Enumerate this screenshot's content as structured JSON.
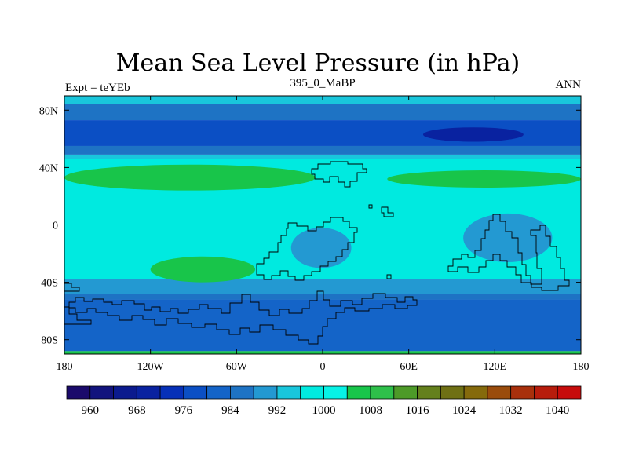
{
  "chart_data": {
    "type": "contour-map",
    "title": "Mean Sea Level Pressure (in hPa)",
    "left_label": "Expt = teYEb",
    "center_label": "395_0_MaBP",
    "right_label": "ANN",
    "xlim": [
      -180,
      180
    ],
    "ylim": [
      -90,
      90
    ],
    "x_ticks": [
      {
        "value": -180,
        "label": "180"
      },
      {
        "value": -120,
        "label": "120W"
      },
      {
        "value": -60,
        "label": "60W"
      },
      {
        "value": 0,
        "label": "0"
      },
      {
        "value": 60,
        "label": "60E"
      },
      {
        "value": 120,
        "label": "120E"
      },
      {
        "value": 180,
        "label": "180"
      }
    ],
    "y_ticks": [
      {
        "value": 80,
        "label": "80N"
      },
      {
        "value": 40,
        "label": "40N"
      },
      {
        "value": 0,
        "label": "0"
      },
      {
        "value": -40,
        "label": "40S"
      },
      {
        "value": -80,
        "label": "80S"
      }
    ],
    "colorbar": {
      "levels": [
        956,
        960,
        964,
        968,
        972,
        976,
        980,
        984,
        988,
        992,
        996,
        1000,
        1004,
        1008,
        1012,
        1016,
        1020,
        1024,
        1028,
        1032,
        1036,
        1040,
        1044
      ],
      "colors": [
        "#1a0a6b",
        "#12137d",
        "#0b1a8e",
        "#0922a0",
        "#0630b8",
        "#0b4fc4",
        "#1464c8",
        "#1e73c4",
        "#2399d2",
        "#19c6dc",
        "#00eae0",
        "#07f2e6",
        "#18c54a",
        "#2ec04a",
        "#4d9a28",
        "#64801c",
        "#6f7014",
        "#856a0c",
        "#9a4c0c",
        "#a8300c",
        "#b71c0c",
        "#c70c0c"
      ],
      "labels": [
        {
          "value": 960,
          "label": "960"
        },
        {
          "value": 968,
          "label": "968"
        },
        {
          "value": 976,
          "label": "976"
        },
        {
          "value": 984,
          "label": "984"
        },
        {
          "value": 992,
          "label": "992"
        },
        {
          "value": 1000,
          "label": "1000"
        },
        {
          "value": 1008,
          "label": "1008"
        },
        {
          "value": 1016,
          "label": "1016"
        },
        {
          "value": 1024,
          "label": "1024"
        },
        {
          "value": 1032,
          "label": "1032"
        },
        {
          "value": 1040,
          "label": "1040"
        }
      ]
    },
    "bands": [
      {
        "lat_from": 90,
        "lat_to": 84,
        "value": 994
      },
      {
        "lat_from": 84,
        "lat_to": 73,
        "value": 986
      },
      {
        "lat_from": 73,
        "lat_to": 55,
        "value": 978
      },
      {
        "lat_from": 55,
        "lat_to": 49,
        "value": 986
      },
      {
        "lat_from": 49,
        "lat_to": 46,
        "value": 994
      },
      {
        "lat_from": 46,
        "lat_to": -38,
        "value": 998
      },
      {
        "lat_from": -38,
        "lat_to": -48,
        "value": 990
      },
      {
        "lat_from": -48,
        "lat_to": -52,
        "value": 986
      },
      {
        "lat_from": -52,
        "lat_to": -88,
        "value": 982
      },
      {
        "lat_from": -88,
        "lat_to": -90,
        "value": 1006
      }
    ],
    "features": [
      {
        "name": "low-north-pacific",
        "lon": [
          70,
          140
        ],
        "lat": [
          58,
          68
        ],
        "value": 970
      },
      {
        "name": "high-north-atlantic",
        "lon": [
          -180,
          -5
        ],
        "lat": [
          24,
          42
        ],
        "value": 1006
      },
      {
        "name": "high-north-pacific",
        "lon": [
          45,
          180
        ],
        "lat": [
          26,
          38
        ],
        "value": 1006
      },
      {
        "name": "high-south",
        "lon": [
          -120,
          -47
        ],
        "lat": [
          -40,
          -22
        ],
        "value": 1006
      },
      {
        "name": "low-tropical-west",
        "lon": [
          -22,
          20
        ],
        "lat": [
          -30,
          -2
        ],
        "value": 990
      },
      {
        "name": "low-tropical-east",
        "lon": [
          98,
          160
        ],
        "lat": [
          -26,
          8
        ],
        "value": 990
      }
    ]
  }
}
